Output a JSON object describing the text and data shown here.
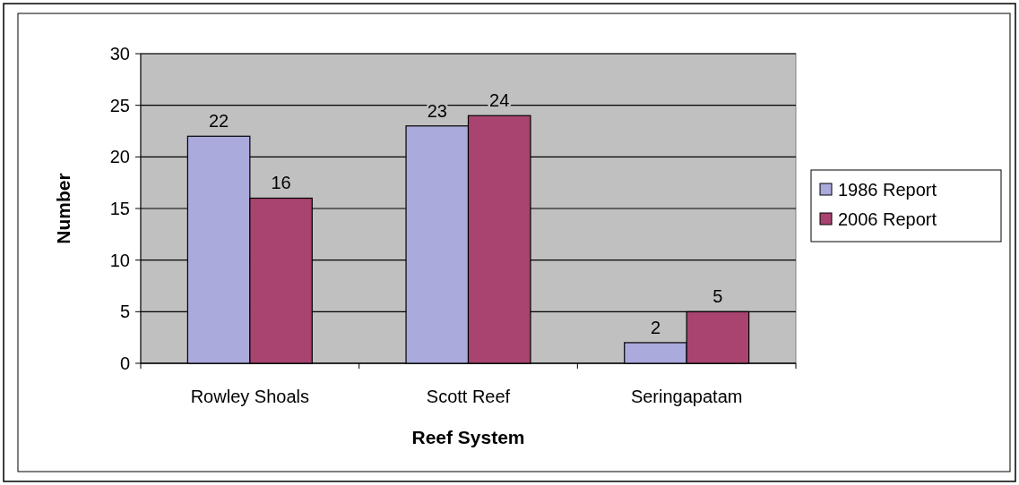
{
  "chart_data": {
    "type": "bar",
    "xlabel": "Reef System",
    "ylabel": "Number",
    "categories": [
      "Rowley Shoals",
      "Scott Reef",
      "Seringapatam"
    ],
    "series": [
      {
        "name": "1986 Report",
        "color": "#aaaadc",
        "values": [
          22,
          23,
          2
        ]
      },
      {
        "name": "2006 Report",
        "color": "#a8446f",
        "values": [
          16,
          24,
          5
        ]
      }
    ],
    "ylim": [
      0,
      30
    ],
    "yticks": [
      0,
      5,
      10,
      15,
      20,
      25,
      30
    ],
    "grid": "y",
    "legend": "right",
    "data_labels": true
  }
}
